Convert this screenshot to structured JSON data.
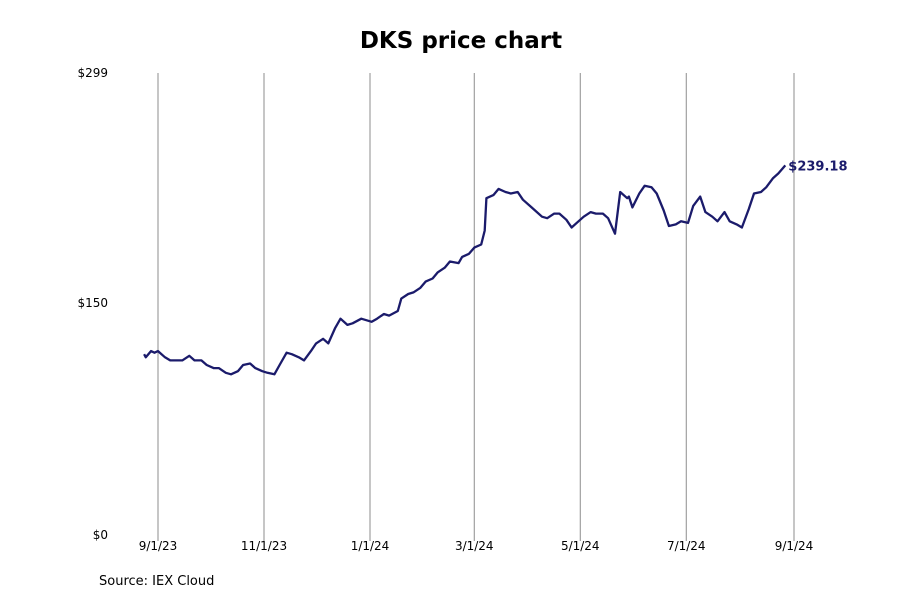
{
  "chart_data": {
    "type": "line",
    "title": "DKS price chart",
    "xlabel": "",
    "ylabel": "",
    "ylim": [
      0,
      299
    ],
    "y_ticks": [
      {
        "value": 0,
        "label": "$0"
      },
      {
        "value": 150,
        "label": "$150"
      },
      {
        "value": 299,
        "label": "$299"
      }
    ],
    "x_ticks": [
      {
        "date": "2023-09-01",
        "label": "9/1/23"
      },
      {
        "date": "2023-11-01",
        "label": "11/1/23"
      },
      {
        "date": "2024-01-01",
        "label": "1/1/24"
      },
      {
        "date": "2024-03-01",
        "label": "3/1/24"
      },
      {
        "date": "2024-05-01",
        "label": "5/1/24"
      },
      {
        "date": "2024-07-01",
        "label": "7/1/24"
      },
      {
        "date": "2024-09-01",
        "label": "9/1/24"
      }
    ],
    "vertical_grid": true,
    "line_color": "#1b1b6b",
    "end_label": "$239.18",
    "series": [
      {
        "x": [
          "2023-08-24",
          "2023-08-25",
          "2023-08-28",
          "2023-08-30",
          "2023-09-01",
          "2023-09-05",
          "2023-09-08",
          "2023-09-12",
          "2023-09-15",
          "2023-09-19",
          "2023-09-22",
          "2023-09-26",
          "2023-09-29",
          "2023-10-03",
          "2023-10-06",
          "2023-10-10",
          "2023-10-13",
          "2023-10-17",
          "2023-10-20",
          "2023-10-24",
          "2023-10-27",
          "2023-10-31",
          "2023-11-03",
          "2023-11-07",
          "2023-11-10",
          "2023-11-14",
          "2023-11-17",
          "2023-11-21",
          "2023-11-24",
          "2023-11-28",
          "2023-12-01",
          "2023-12-05",
          "2023-12-08",
          "2023-12-12",
          "2023-12-15",
          "2023-12-19",
          "2023-12-22",
          "2023-12-27",
          "2024-01-02",
          "2024-01-05",
          "2024-01-09",
          "2024-01-12",
          "2024-01-17",
          "2024-01-19",
          "2024-01-23",
          "2024-01-26",
          "2024-01-30",
          "2024-02-02",
          "2024-02-06",
          "2024-02-09",
          "2024-02-13",
          "2024-02-16",
          "2024-02-21",
          "2024-02-23",
          "2024-02-27",
          "2024-03-01",
          "2024-03-05",
          "2024-03-07",
          "2024-03-08",
          "2024-03-12",
          "2024-03-15",
          "2024-03-19",
          "2024-03-22",
          "2024-03-26",
          "2024-03-29",
          "2024-04-03",
          "2024-04-05",
          "2024-04-09",
          "2024-04-12",
          "2024-04-16",
          "2024-04-19",
          "2024-04-23",
          "2024-04-26",
          "2024-04-30",
          "2024-05-03",
          "2024-05-07",
          "2024-05-10",
          "2024-05-14",
          "2024-05-17",
          "2024-05-21",
          "2024-05-24",
          "2024-05-28",
          "2024-05-29",
          "2024-05-31",
          "2024-06-04",
          "2024-06-07",
          "2024-06-11",
          "2024-06-14",
          "2024-06-18",
          "2024-06-21",
          "2024-06-25",
          "2024-06-28",
          "2024-07-02",
          "2024-07-05",
          "2024-07-09",
          "2024-07-12",
          "2024-07-16",
          "2024-07-19",
          "2024-07-23",
          "2024-07-26",
          "2024-07-30",
          "2024-08-02",
          "2024-08-06",
          "2024-08-09",
          "2024-08-13",
          "2024-08-16",
          "2024-08-20",
          "2024-08-23",
          "2024-08-27"
        ],
        "values": [
          117,
          115,
          119,
          118,
          119,
          115,
          113,
          113,
          113,
          116,
          113,
          113,
          110,
          108,
          108,
          105,
          104,
          106,
          110,
          111,
          108,
          106,
          105,
          104,
          110,
          118,
          117,
          115,
          113,
          119,
          124,
          127,
          124,
          134,
          140,
          136,
          137,
          140,
          138,
          140,
          143,
          142,
          145,
          153,
          156,
          157,
          160,
          164,
          166,
          170,
          173,
          177,
          176,
          180,
          182,
          186,
          188,
          197,
          218,
          220,
          224,
          222,
          221,
          222,
          217,
          212,
          210,
          206,
          205,
          208,
          208,
          204,
          199,
          203,
          206,
          209,
          208,
          208,
          205,
          195,
          222,
          218,
          219,
          212,
          221,
          226,
          225,
          221,
          210,
          200,
          201,
          203,
          202,
          213,
          219,
          209,
          206,
          203,
          209,
          203,
          201,
          199,
          211,
          221,
          222,
          225,
          231,
          234,
          239.18
        ]
      }
    ]
  },
  "footer": {
    "source": "Source: IEX Cloud"
  }
}
